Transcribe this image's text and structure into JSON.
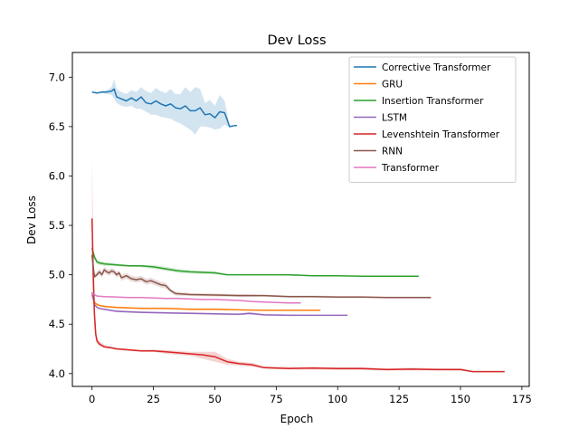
{
  "chart_data": {
    "type": "line",
    "title": "Dev Loss",
    "xlabel": "Epoch",
    "ylabel": "Dev Loss",
    "xlim": [
      -8,
      178
    ],
    "ylim": [
      3.87,
      7.25
    ],
    "xticks": [
      0,
      25,
      50,
      75,
      100,
      125,
      150,
      175
    ],
    "yticks": [
      4.0,
      4.5,
      5.0,
      5.5,
      6.0,
      6.5,
      7.0
    ],
    "ytick_labels": [
      "4.0",
      "4.5",
      "5.0",
      "5.5",
      "6.0",
      "6.5",
      "7.0"
    ],
    "grid": false,
    "legend_position": "top-right",
    "series": [
      {
        "name": "Corrective Transformer",
        "color": "#1f77b4",
        "x": [
          0,
          2,
          4,
          6,
          8,
          9,
          10,
          12,
          14,
          16,
          18,
          20,
          22,
          24,
          26,
          28,
          30,
          32,
          34,
          36,
          38,
          40,
          42,
          44,
          46,
          48,
          50,
          52,
          54,
          56,
          58,
          59
        ],
        "y": [
          6.85,
          6.84,
          6.85,
          6.85,
          6.86,
          6.88,
          6.8,
          6.78,
          6.76,
          6.79,
          6.76,
          6.8,
          6.74,
          6.73,
          6.76,
          6.73,
          6.71,
          6.73,
          6.69,
          6.68,
          6.71,
          6.66,
          6.66,
          6.69,
          6.62,
          6.63,
          6.59,
          6.65,
          6.64,
          6.5,
          6.51,
          6.51
        ],
        "lower": [
          6.84,
          6.83,
          6.84,
          6.83,
          6.82,
          6.78,
          6.74,
          6.71,
          6.7,
          6.71,
          6.68,
          6.68,
          6.65,
          6.62,
          6.62,
          6.6,
          6.59,
          6.58,
          6.55,
          6.53,
          6.5,
          6.47,
          6.42,
          6.5,
          6.5,
          6.49,
          6.47,
          6.48,
          6.52,
          6.49,
          6.51,
          6.51
        ],
        "upper": [
          6.86,
          6.85,
          6.86,
          6.87,
          6.9,
          6.98,
          6.88,
          6.85,
          6.83,
          6.87,
          6.85,
          6.9,
          6.86,
          6.84,
          6.89,
          6.86,
          6.84,
          6.88,
          6.83,
          6.83,
          6.9,
          6.85,
          6.9,
          6.88,
          6.74,
          6.77,
          6.71,
          6.82,
          6.76,
          6.51,
          6.51,
          6.51
        ]
      },
      {
        "name": "GRU",
        "color": "#ff7f0e",
        "x": [
          0,
          1,
          2,
          3,
          5,
          10,
          20,
          30,
          40,
          50,
          60,
          70,
          80,
          93
        ],
        "y": [
          4.8,
          4.72,
          4.7,
          4.69,
          4.68,
          4.67,
          4.66,
          4.66,
          4.65,
          4.65,
          4.645,
          4.64,
          4.64,
          4.64
        ],
        "lower": [
          4.79,
          4.71,
          4.69,
          4.68,
          4.67,
          4.66,
          4.65,
          4.65,
          4.64,
          4.64,
          4.64,
          4.635,
          4.635,
          4.635
        ],
        "upper": [
          4.81,
          4.73,
          4.71,
          4.7,
          4.69,
          4.68,
          4.67,
          4.67,
          4.66,
          4.66,
          4.65,
          4.645,
          4.645,
          4.645
        ]
      },
      {
        "name": "Insertion Transformer",
        "color": "#2ca02c",
        "x": [
          0,
          1,
          2,
          3,
          5,
          10,
          15,
          20,
          25,
          30,
          35,
          40,
          50,
          55,
          60,
          70,
          80,
          90,
          100,
          110,
          120,
          133
        ],
        "y": [
          5.27,
          5.18,
          5.13,
          5.12,
          5.11,
          5.1,
          5.09,
          5.09,
          5.08,
          5.06,
          5.04,
          5.03,
          5.02,
          5.0,
          5.0,
          5.0,
          5.0,
          4.99,
          4.99,
          4.985,
          4.985,
          4.985
        ],
        "lower": [
          5.22,
          5.15,
          5.11,
          5.1,
          5.09,
          5.085,
          5.08,
          5.075,
          5.06,
          5.04,
          5.02,
          5.01,
          5.005,
          4.995,
          4.995,
          4.995,
          4.99,
          4.985,
          4.985,
          4.98,
          4.98,
          4.98
        ],
        "upper": [
          5.32,
          5.21,
          5.15,
          5.14,
          5.13,
          5.115,
          5.1,
          5.1,
          5.1,
          5.08,
          5.06,
          5.045,
          5.035,
          5.005,
          5.005,
          5.005,
          5.005,
          4.995,
          4.995,
          4.99,
          4.99,
          4.99
        ]
      },
      {
        "name": "LSTM",
        "color": "#9467bd",
        "x": [
          0,
          1,
          2,
          3,
          5,
          10,
          20,
          30,
          40,
          50,
          60,
          64,
          70,
          80,
          90,
          104
        ],
        "y": [
          4.82,
          4.7,
          4.67,
          4.66,
          4.65,
          4.63,
          4.62,
          4.615,
          4.61,
          4.605,
          4.6,
          4.61,
          4.595,
          4.59,
          4.59,
          4.59
        ],
        "lower": [
          4.8,
          4.69,
          4.66,
          4.65,
          4.64,
          4.62,
          4.61,
          4.605,
          4.6,
          4.595,
          4.59,
          4.595,
          4.585,
          4.585,
          4.585,
          4.585
        ],
        "upper": [
          4.84,
          4.71,
          4.68,
          4.67,
          4.66,
          4.64,
          4.63,
          4.625,
          4.62,
          4.615,
          4.61,
          4.625,
          4.605,
          4.6,
          4.595,
          4.595
        ]
      },
      {
        "name": "Levenshtein Transformer",
        "color": "#d62728",
        "x": [
          0,
          0.5,
          1,
          1.5,
          2,
          3,
          5,
          8,
          10,
          15,
          20,
          25,
          30,
          35,
          40,
          45,
          50,
          55,
          60,
          65,
          70,
          80,
          90,
          100,
          110,
          120,
          130,
          140,
          150,
          155,
          160,
          168
        ],
        "y": [
          5.57,
          5.0,
          4.6,
          4.4,
          4.33,
          4.3,
          4.27,
          4.26,
          4.25,
          4.24,
          4.23,
          4.23,
          4.22,
          4.21,
          4.2,
          4.19,
          4.17,
          4.12,
          4.1,
          4.09,
          4.06,
          4.05,
          4.055,
          4.05,
          4.05,
          4.04,
          4.045,
          4.04,
          4.04,
          4.02,
          4.02,
          4.02
        ],
        "lower": [
          4.95,
          4.7,
          4.45,
          4.35,
          4.3,
          4.28,
          4.26,
          4.25,
          4.24,
          4.23,
          4.22,
          4.22,
          4.2,
          4.19,
          4.18,
          4.15,
          4.12,
          4.09,
          4.08,
          4.07,
          4.05,
          4.04,
          4.04,
          4.035,
          4.035,
          4.03,
          4.03,
          4.03,
          4.03,
          4.015,
          4.015,
          4.015
        ],
        "upper": [
          6.18,
          5.4,
          4.78,
          4.47,
          4.37,
          4.33,
          4.29,
          4.27,
          4.26,
          4.25,
          4.24,
          4.245,
          4.24,
          4.23,
          4.22,
          4.22,
          4.22,
          4.15,
          4.12,
          4.11,
          4.075,
          4.07,
          4.07,
          4.065,
          4.065,
          4.055,
          4.06,
          4.055,
          4.055,
          4.025,
          4.025,
          4.025
        ]
      },
      {
        "name": "RNN",
        "color": "#8c564b",
        "x": [
          0,
          0.5,
          1,
          2,
          3,
          4,
          5,
          6,
          7,
          8,
          9,
          10,
          11,
          12,
          14,
          16,
          18,
          20,
          22,
          24,
          26,
          28,
          30,
          32,
          34,
          40,
          50,
          60,
          70,
          80,
          90,
          100,
          110,
          120,
          130,
          138
        ],
        "y": [
          5.2,
          5.08,
          4.98,
          5.0,
          5.03,
          5.0,
          5.05,
          5.03,
          5.02,
          5.04,
          5.03,
          5.0,
          5.02,
          4.97,
          4.99,
          4.96,
          4.95,
          4.96,
          4.93,
          4.94,
          4.92,
          4.9,
          4.89,
          4.84,
          4.81,
          4.8,
          4.795,
          4.79,
          4.79,
          4.78,
          4.78,
          4.775,
          4.775,
          4.77,
          4.77,
          4.77
        ],
        "lower": [
          5.1,
          5.0,
          4.96,
          4.98,
          5.0,
          4.97,
          5.02,
          5.0,
          4.99,
          5.01,
          5.0,
          4.97,
          4.99,
          4.94,
          4.96,
          4.93,
          4.92,
          4.93,
          4.9,
          4.91,
          4.89,
          4.87,
          4.86,
          4.82,
          4.79,
          4.785,
          4.78,
          4.775,
          4.78,
          4.77,
          4.77,
          4.765,
          4.765,
          4.76,
          4.76,
          4.76
        ],
        "upper": [
          5.3,
          5.16,
          5.01,
          5.03,
          5.06,
          5.03,
          5.08,
          5.06,
          5.05,
          5.07,
          5.06,
          5.03,
          5.05,
          5.0,
          5.02,
          4.99,
          4.98,
          4.99,
          4.96,
          4.97,
          4.95,
          4.93,
          4.92,
          4.86,
          4.83,
          4.815,
          4.81,
          4.805,
          4.8,
          4.79,
          4.79,
          4.785,
          4.785,
          4.78,
          4.78,
          4.78
        ]
      },
      {
        "name": "Transformer",
        "color": "#e377c2",
        "x": [
          0,
          1,
          2,
          5,
          10,
          15,
          20,
          25,
          30,
          35,
          40,
          45,
          50,
          55,
          60,
          65,
          70,
          75,
          80,
          85
        ],
        "y": [
          4.81,
          4.8,
          4.785,
          4.78,
          4.775,
          4.77,
          4.77,
          4.765,
          4.76,
          4.76,
          4.755,
          4.75,
          4.75,
          4.745,
          4.74,
          4.73,
          4.725,
          4.72,
          4.715,
          4.715
        ],
        "lower": [
          4.8,
          4.79,
          4.78,
          4.775,
          4.77,
          4.765,
          4.765,
          4.76,
          4.755,
          4.755,
          4.75,
          4.745,
          4.745,
          4.74,
          4.735,
          4.725,
          4.72,
          4.715,
          4.71,
          4.71
        ],
        "upper": [
          4.82,
          4.81,
          4.79,
          4.785,
          4.78,
          4.775,
          4.775,
          4.77,
          4.765,
          4.765,
          4.76,
          4.755,
          4.755,
          4.75,
          4.745,
          4.735,
          4.73,
          4.725,
          4.72,
          4.72
        ]
      }
    ]
  }
}
